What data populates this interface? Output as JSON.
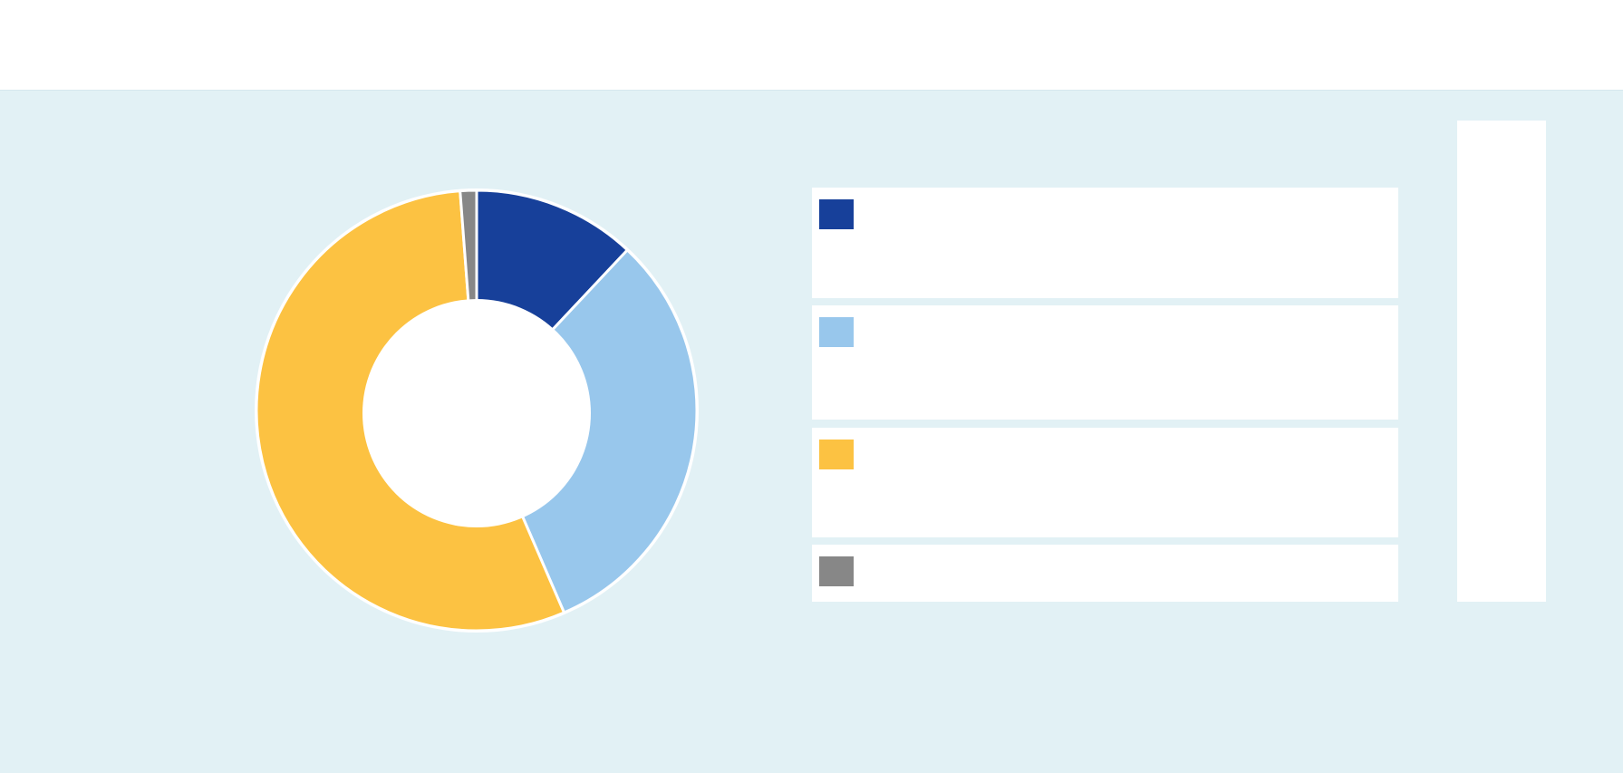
{
  "colors": {
    "panel_background": "#e2f1f5",
    "slice_dark_blue": "#17409a",
    "slice_light_blue": "#98c7ec",
    "slice_yellow": "#fcc242",
    "slice_gray": "#878787"
  },
  "chart_data": {
    "type": "pie",
    "hole": true,
    "title": "",
    "categories": [
      "",
      "",
      "",
      ""
    ],
    "values": [
      12.0,
      31.5,
      55.3,
      1.2
    ],
    "unit": "%",
    "colors": [
      "#17409a",
      "#98c7ec",
      "#fcc242",
      "#878787"
    ],
    "legend_position": "right"
  },
  "legend": {
    "items": [
      {
        "label": "",
        "color": "#17409a"
      },
      {
        "label": "",
        "color": "#98c7ec"
      },
      {
        "label": "",
        "color": "#fcc242"
      },
      {
        "label": "",
        "color": "#878787"
      }
    ]
  }
}
